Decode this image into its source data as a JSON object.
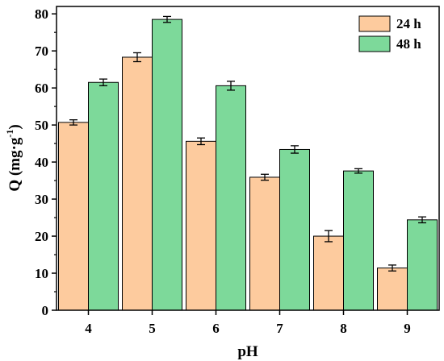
{
  "chart_data": {
    "type": "bar",
    "xlabel": "pH",
    "ylabel": "Q (mg·g",
    "ylabel_superscript": "-1",
    "ylabel_close": ")",
    "categories": [
      "4",
      "5",
      "6",
      "7",
      "8",
      "9"
    ],
    "series": [
      {
        "name": "24 h",
        "color": "#FDCB9E",
        "values": [
          50.7,
          68.3,
          45.6,
          35.9,
          20.0,
          11.4
        ],
        "errors": [
          0.7,
          1.2,
          0.9,
          0.8,
          1.5,
          0.8
        ]
      },
      {
        "name": "48 h",
        "color": "#7DD99A",
        "values": [
          61.5,
          78.5,
          60.6,
          43.4,
          37.6,
          24.4
        ],
        "errors": [
          0.9,
          0.8,
          1.2,
          1.0,
          0.6,
          0.8
        ]
      }
    ],
    "ylim": [
      0,
      82
    ],
    "yticks": [
      0,
      10,
      20,
      30,
      40,
      50,
      60,
      70,
      80
    ],
    "grid": false,
    "legend_position": "top-right"
  }
}
